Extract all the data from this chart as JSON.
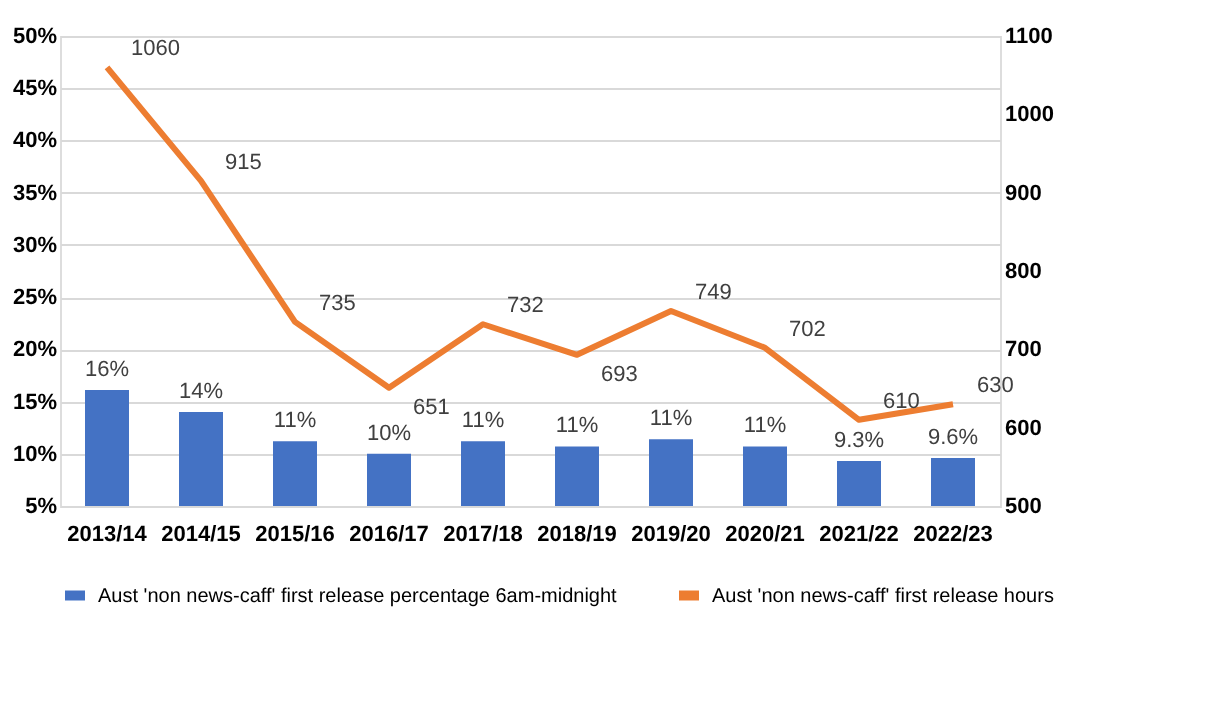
{
  "chart_data": {
    "type": "bar",
    "categories": [
      "2013/14",
      "2014/15",
      "2015/16",
      "2016/17",
      "2017/18",
      "2018/19",
      "2019/20",
      "2020/21",
      "2021/22",
      "2022/23"
    ],
    "series": [
      {
        "name": "Aust 'non news-caff' first release percentage 6am-midnight",
        "color": "#4472c4",
        "values": [
          16.1,
          14.0,
          11.2,
          10.0,
          11.2,
          10.7,
          11.4,
          10.7,
          9.3,
          9.6
        ],
        "value_labels": [
          "16%",
          "14%",
          "11%",
          "10%",
          "11%",
          "11%",
          "11%",
          "11%",
          "9.3%",
          "9.6%"
        ]
      },
      {
        "name": "Aust 'non news-caff' first release hours",
        "type": "line",
        "axis": "y2",
        "color": "#ed7d31",
        "values": [
          1060,
          915,
          735,
          651,
          732,
          693,
          749,
          702,
          610,
          630
        ],
        "data_labels": true
      }
    ],
    "ylim": [
      5,
      50
    ],
    "yticks": [
      {
        "value": 5,
        "label": "5%"
      },
      {
        "value": 10,
        "label": "10%"
      },
      {
        "value": 15,
        "label": "15%"
      },
      {
        "value": 20,
        "label": "20%"
      },
      {
        "value": 25,
        "label": "25%"
      },
      {
        "value": 30,
        "label": "30%"
      },
      {
        "value": 35,
        "label": "35%"
      },
      {
        "value": 40,
        "label": "40%"
      },
      {
        "value": 45,
        "label": "45%"
      },
      {
        "value": 50,
        "label": "50%"
      }
    ],
    "y2lim": [
      500,
      1100
    ],
    "y2ticks": [
      500,
      600,
      700,
      800,
      900,
      1000,
      1100
    ],
    "grid": "y",
    "legend": "bottom"
  }
}
